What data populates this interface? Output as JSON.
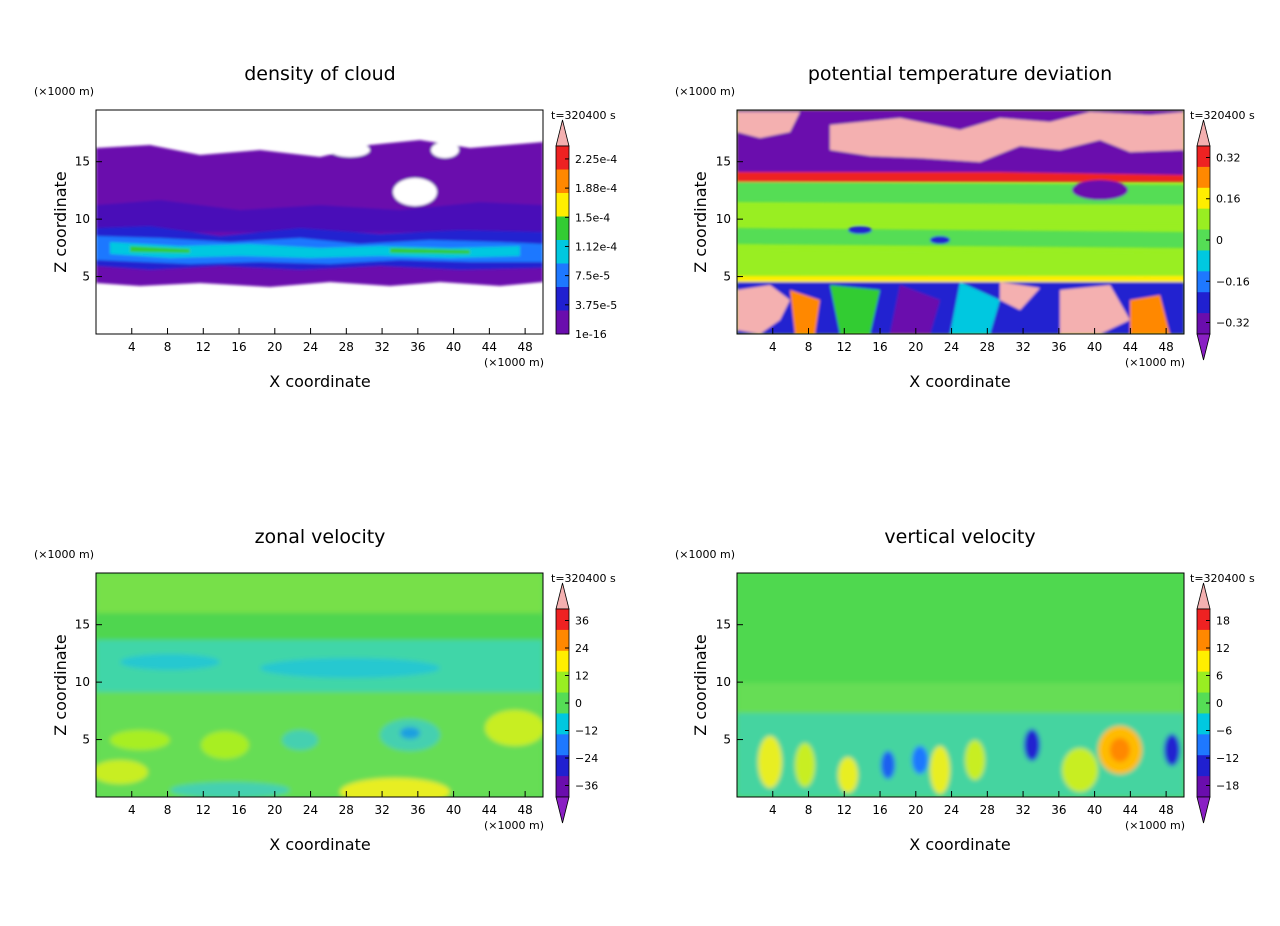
{
  "panels": [
    {
      "title": "density of cloud",
      "time_label": "t=320400 s",
      "x_unit": "(×1000 m)",
      "y_unit": "(×1000 m)",
      "xlabel": "X coordinate",
      "ylabel": "Z coordinate",
      "xticks": [
        "4",
        "8",
        "12",
        "16",
        "20",
        "24",
        "28",
        "32",
        "36",
        "40",
        "44",
        "48"
      ],
      "yticks": [
        "5",
        "10",
        "15"
      ],
      "colorbar_labels": [
        "2.25e-4",
        "1.88e-4",
        "1.5e-4",
        "1.12e-4",
        "7.5e-5",
        "3.75e-5",
        "1e-16"
      ],
      "colorbar_low_arrow": false
    },
    {
      "title": "potential temperature deviation",
      "time_label": "t=320400 s",
      "x_unit": "(×1000 m)",
      "y_unit": "(×1000 m)",
      "xlabel": "X coordinate",
      "ylabel": "Z coordinate",
      "xticks": [
        "4",
        "8",
        "12",
        "16",
        "20",
        "24",
        "28",
        "32",
        "36",
        "40",
        "44",
        "48"
      ],
      "yticks": [
        "5",
        "10",
        "15"
      ],
      "colorbar_labels": [
        "0.32",
        "0.16",
        "0",
        "−0.16",
        "−0.32"
      ],
      "colorbar_low_arrow": true
    },
    {
      "title": "zonal velocity",
      "time_label": "t=320400 s",
      "x_unit": "(×1000 m)",
      "y_unit": "(×1000 m)",
      "xlabel": "X coordinate",
      "ylabel": "Z coordinate",
      "xticks": [
        "4",
        "8",
        "12",
        "16",
        "20",
        "24",
        "28",
        "32",
        "36",
        "40",
        "44",
        "48"
      ],
      "yticks": [
        "5",
        "10",
        "15"
      ],
      "colorbar_labels": [
        "36",
        "24",
        "12",
        "0",
        "−12",
        "−24",
        "−36"
      ],
      "colorbar_low_arrow": true
    },
    {
      "title": "vertical velocity",
      "time_label": "t=320400 s",
      "x_unit": "(×1000 m)",
      "y_unit": "(×1000 m)",
      "xlabel": "X coordinate",
      "ylabel": "Z coordinate",
      "xticks": [
        "4",
        "8",
        "12",
        "16",
        "20",
        "24",
        "28",
        "32",
        "36",
        "40",
        "44",
        "48"
      ],
      "yticks": [
        "5",
        "10",
        "15"
      ],
      "colorbar_labels": [
        "18",
        "12",
        "6",
        "0",
        "−6",
        "−12",
        "−18"
      ],
      "colorbar_low_arrow": true
    }
  ],
  "chart_data": [
    {
      "type": "heatmap",
      "title": "density of cloud",
      "xlabel": "X coordinate",
      "ylabel": "Z coordinate",
      "x_unit": "×1000 m",
      "y_unit": "×1000 m",
      "xlim": [
        0,
        50
      ],
      "ylim": [
        0,
        19.5
      ],
      "colorbar_levels": [
        1e-16,
        3.75e-05,
        7.5e-05,
        0.000112,
        0.00015,
        0.000188,
        0.000225
      ],
      "colors": [
        "#6a0dad",
        "#2020d0",
        "#1e78ff",
        "#00c8e0",
        "#33cc33",
        "#ffee00",
        "#ff8800",
        "#ee2222",
        "#f4b0b0"
      ]
    },
    {
      "type": "heatmap",
      "title": "potential temperature deviation",
      "xlabel": "X coordinate",
      "ylabel": "Z coordinate",
      "x_unit": "×1000 m",
      "y_unit": "×1000 m",
      "xlim": [
        0,
        50
      ],
      "ylim": [
        0,
        19.5
      ],
      "colorbar_levels": [
        -0.32,
        -0.16,
        0,
        0.16,
        0.32
      ],
      "colors": [
        "#8a1fc4",
        "#6a0dad",
        "#2020d0",
        "#1e78ff",
        "#00c8e0",
        "#55dd55",
        "#99ee22",
        "#ffee00",
        "#ff8800",
        "#ee2222",
        "#f4b0b0"
      ]
    },
    {
      "type": "heatmap",
      "title": "zonal velocity",
      "xlabel": "X coordinate",
      "ylabel": "Z coordinate",
      "x_unit": "×1000 m",
      "y_unit": "×1000 m",
      "xlim": [
        0,
        50
      ],
      "ylim": [
        0,
        19.5
      ],
      "colorbar_levels": [
        -36,
        -24,
        -12,
        0,
        12,
        24,
        36
      ],
      "colors": [
        "#8a1fc4",
        "#6a0dad",
        "#2020d0",
        "#1e78ff",
        "#00c8e0",
        "#55dd55",
        "#99ee22",
        "#ffee00",
        "#ff8800",
        "#ee2222",
        "#f4b0b0"
      ]
    },
    {
      "type": "heatmap",
      "title": "vertical velocity",
      "xlabel": "X coordinate",
      "ylabel": "Z coordinate",
      "x_unit": "×1000 m",
      "y_unit": "×1000 m",
      "xlim": [
        0,
        50
      ],
      "ylim": [
        0,
        19.5
      ],
      "colorbar_levels": [
        -18,
        -12,
        -6,
        0,
        6,
        12,
        18
      ],
      "colors": [
        "#8a1fc4",
        "#6a0dad",
        "#2020d0",
        "#1e78ff",
        "#00c8e0",
        "#55dd55",
        "#99ee22",
        "#ffee00",
        "#ff8800",
        "#ee2222",
        "#f4b0b0"
      ]
    }
  ]
}
